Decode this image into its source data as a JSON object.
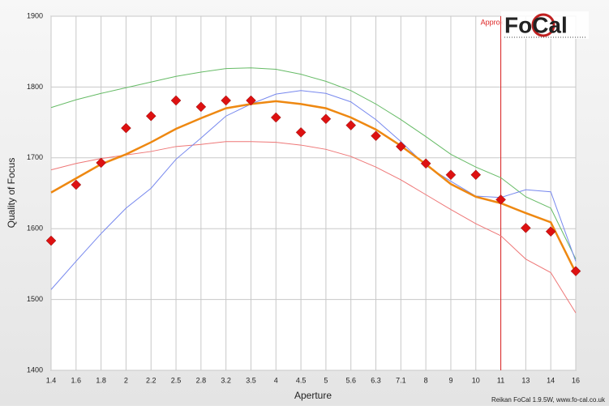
{
  "chart_data": {
    "type": "line",
    "y_label": "Quality of Focus",
    "x_label": "Aperture",
    "categories": [
      "1.4",
      "1.6",
      "1.8",
      "2",
      "2.2",
      "2.5",
      "2.8",
      "3.2",
      "3.5",
      "4",
      "4.5",
      "5",
      "5.6",
      "6.3",
      "7.1",
      "8",
      "9",
      "10",
      "11",
      "13",
      "14",
      "16"
    ],
    "ylim": [
      1400,
      1900
    ],
    "yticks": [
      1400,
      1500,
      1600,
      1700,
      1800,
      1900
    ],
    "grid": true,
    "series": [
      {
        "kind": "line",
        "color": "#66bb66",
        "width": 1,
        "values": [
          1771,
          1782,
          1791,
          1799,
          1807,
          1815,
          1821,
          1826,
          1827,
          1825,
          1818,
          1808,
          1795,
          1776,
          1754,
          1730,
          1705,
          1687,
          1672,
          1645,
          1629,
          1557
        ]
      },
      {
        "kind": "line",
        "color": "#ee7777",
        "width": 1,
        "values": [
          1683,
          1692,
          1699,
          1704,
          1709,
          1716,
          1719,
          1723,
          1723,
          1722,
          1718,
          1712,
          1702,
          1687,
          1669,
          1648,
          1627,
          1607,
          1590,
          1557,
          1538,
          1481
        ]
      },
      {
        "kind": "line",
        "color": "#7788ee",
        "width": 1,
        "values": [
          1514,
          1554,
          1593,
          1629,
          1657,
          1698,
          1728,
          1759,
          1776,
          1790,
          1795,
          1791,
          1779,
          1754,
          1723,
          1689,
          1667,
          1646,
          1644,
          1655,
          1652,
          1554
        ]
      },
      {
        "kind": "line",
        "color": "#ee8811",
        "width": 2.5,
        "values": [
          1651,
          1671,
          1691,
          1705,
          1722,
          1741,
          1756,
          1770,
          1776,
          1780,
          1776,
          1770,
          1757,
          1740,
          1717,
          1691,
          1663,
          1645,
          1636,
          1622,
          1609,
          1538
        ]
      },
      {
        "kind": "scatter",
        "color": "#dd1111",
        "values": [
          1583,
          1662,
          1693,
          1742,
          1759,
          1781,
          1772,
          1781,
          1781,
          1757,
          1736,
          1755,
          1746,
          1731,
          1716,
          1692,
          1676,
          1676,
          1641,
          1601,
          1596,
          1540
        ]
      }
    ],
    "marker": {
      "label": "Approx",
      "at": "11",
      "color": "#dd2222"
    },
    "logo": "FoCal",
    "footer": "Reikan FoCal 1.9.5W, www.fo-cal.co.uk"
  }
}
